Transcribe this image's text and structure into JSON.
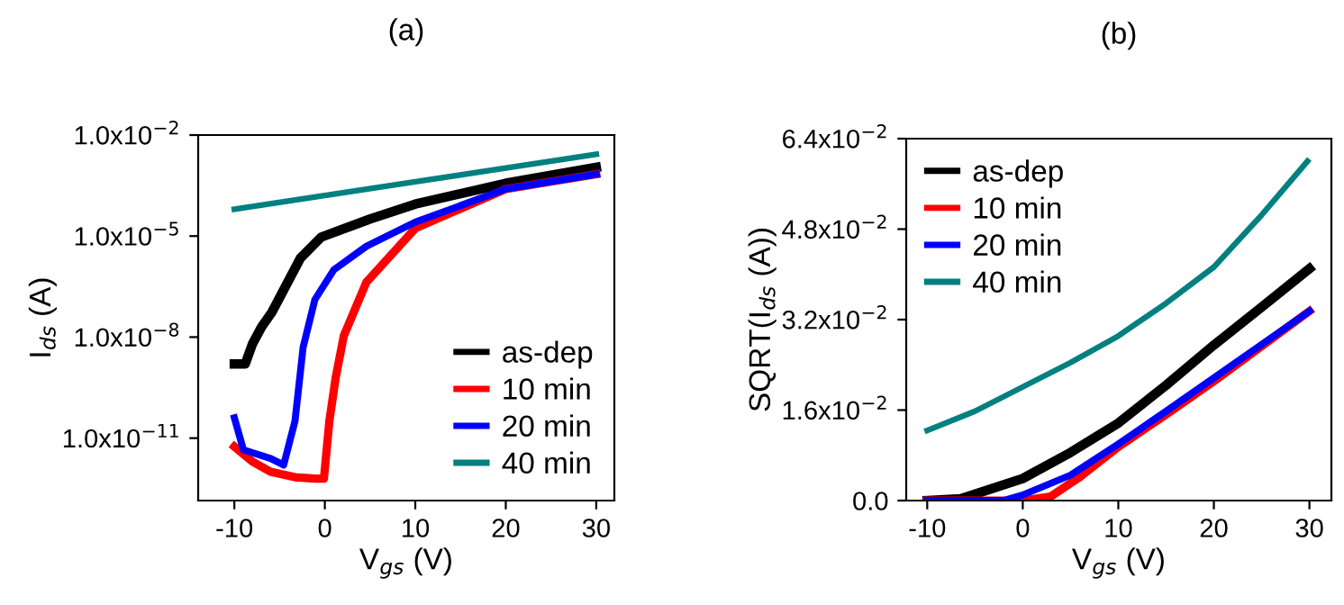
{
  "chart_data": [
    {
      "type": "line",
      "title": "(a)",
      "xlabel": "V$_{gs}$ (V)",
      "ylabel": "I$_{ds}$ (A)",
      "log": "y",
      "xlim": [
        -14,
        32
      ],
      "xticks": [
        -10,
        0,
        10,
        20,
        30
      ],
      "ylim": [
        1.4e-13,
        0.01
      ],
      "yticks": [
        {
          "value": 0.01,
          "label": "1.0x10$^{−2}$"
        },
        {
          "value": 1e-05,
          "label": "1.0x10$^{−5}$"
        },
        {
          "value": 1e-08,
          "label": "1.0x10$^{−8}$"
        },
        {
          "value": 1e-11,
          "label": "1.0x10$^{−11}$"
        }
      ],
      "grid": false,
      "legend": "bottom right",
      "marker": "none",
      "line_style": "solid",
      "series": [
        {
          "name": "as-dep",
          "color": "#000000",
          "x": [
            -10,
            -8.8,
            -8,
            -7,
            -5.85,
            -2.7,
            -0.4,
            5,
            10,
            20,
            30
          ],
          "values": [
            1.6e-09,
            1.6e-09,
            6.3e-09,
            2e-08,
            5.5e-08,
            2.2e-06,
            9.3e-06,
            3.2e-05,
            8.9e-05,
            0.00037,
            0.0011
          ]
        },
        {
          "name": "10 min",
          "color": "#ff0000",
          "x": [
            -10,
            -8,
            -6,
            -3.3,
            -1,
            -0.1,
            0.5,
            1.2,
            2.1,
            4.6,
            10,
            20,
            30
          ],
          "values": [
            5.6e-12,
            2e-12,
            1e-12,
            6.9e-13,
            6.3e-13,
            6.3e-13,
            3.2e-11,
            6.3e-10,
            1.1e-08,
            4.3e-07,
            1.7e-05,
            0.00025,
            0.00069
          ]
        },
        {
          "name": "20 min",
          "color": "#0000ff",
          "x": [
            -10,
            -9,
            -6,
            -4.55,
            -3.3,
            -2.4,
            -1.1,
            1,
            4.6,
            10,
            20,
            30
          ],
          "values": [
            4e-11,
            4.5e-12,
            2.5e-12,
            1.6e-12,
            3.2e-11,
            5e-09,
            1.3e-07,
            1e-06,
            5e-06,
            2.6e-05,
            0.00025,
            0.00069
          ]
        },
        {
          "name": "40 min",
          "color": "#008080",
          "x": [
            -10,
            0,
            10,
            20,
            30
          ],
          "values": [
            6.3e-05,
            0.00016,
            0.00041,
            0.00105,
            0.0027
          ]
        }
      ]
    },
    {
      "type": "line",
      "title": "(b)",
      "xlabel": "V$_{gs}$ (V)",
      "ylabel": "SQRT(I$_{ds}$ (A))",
      "xlim": [
        -12.2,
        32.3
      ],
      "xticks": [
        -10,
        0,
        10,
        20,
        30
      ],
      "ylim": [
        0,
        0.064
      ],
      "yticks": [
        {
          "value": 0,
          "label": "0.0"
        },
        {
          "value": 0.016,
          "label": "1.6x10$^{−2}$"
        },
        {
          "value": 0.032,
          "label": "3.2x10$^{−2}$"
        },
        {
          "value": 0.048,
          "label": "4.8x10$^{−2}$"
        },
        {
          "value": 0.064,
          "label": "6.4x10$^{−2}$"
        }
      ],
      "grid": false,
      "legend": "top left",
      "marker": "none",
      "line_style": "solid",
      "series": [
        {
          "name": "as-dep",
          "color": "#000000",
          "x": [
            -10,
            -6.5,
            0,
            5,
            10,
            15,
            20,
            25,
            30
          ],
          "values": [
            0,
            0.0003,
            0.0039,
            0.0085,
            0.0137,
            0.0204,
            0.0275,
            0.0342,
            0.041
          ]
        },
        {
          "name": "10 min",
          "color": "#ff0000",
          "x": [
            -10,
            0,
            2.9,
            6,
            10,
            15,
            20,
            25,
            30
          ],
          "values": [
            0,
            0,
            0.0007,
            0.0042,
            0.0095,
            0.0152,
            0.0211,
            0.0273,
            0.0335
          ]
        },
        {
          "name": "20 min",
          "color": "#0000ff",
          "x": [
            -10,
            -2,
            0,
            5,
            10,
            15,
            20,
            25,
            30
          ],
          "values": [
            0,
            0,
            0.001,
            0.0045,
            0.01,
            0.0158,
            0.0217,
            0.0276,
            0.0335
          ]
        },
        {
          "name": "40 min",
          "color": "#008080",
          "x": [
            -10,
            -5,
            0,
            5,
            10,
            15,
            20,
            25,
            29.8
          ],
          "values": [
            0.0124,
            0.0158,
            0.0201,
            0.0244,
            0.0291,
            0.0349,
            0.0413,
            0.0505,
            0.06
          ]
        }
      ]
    }
  ]
}
